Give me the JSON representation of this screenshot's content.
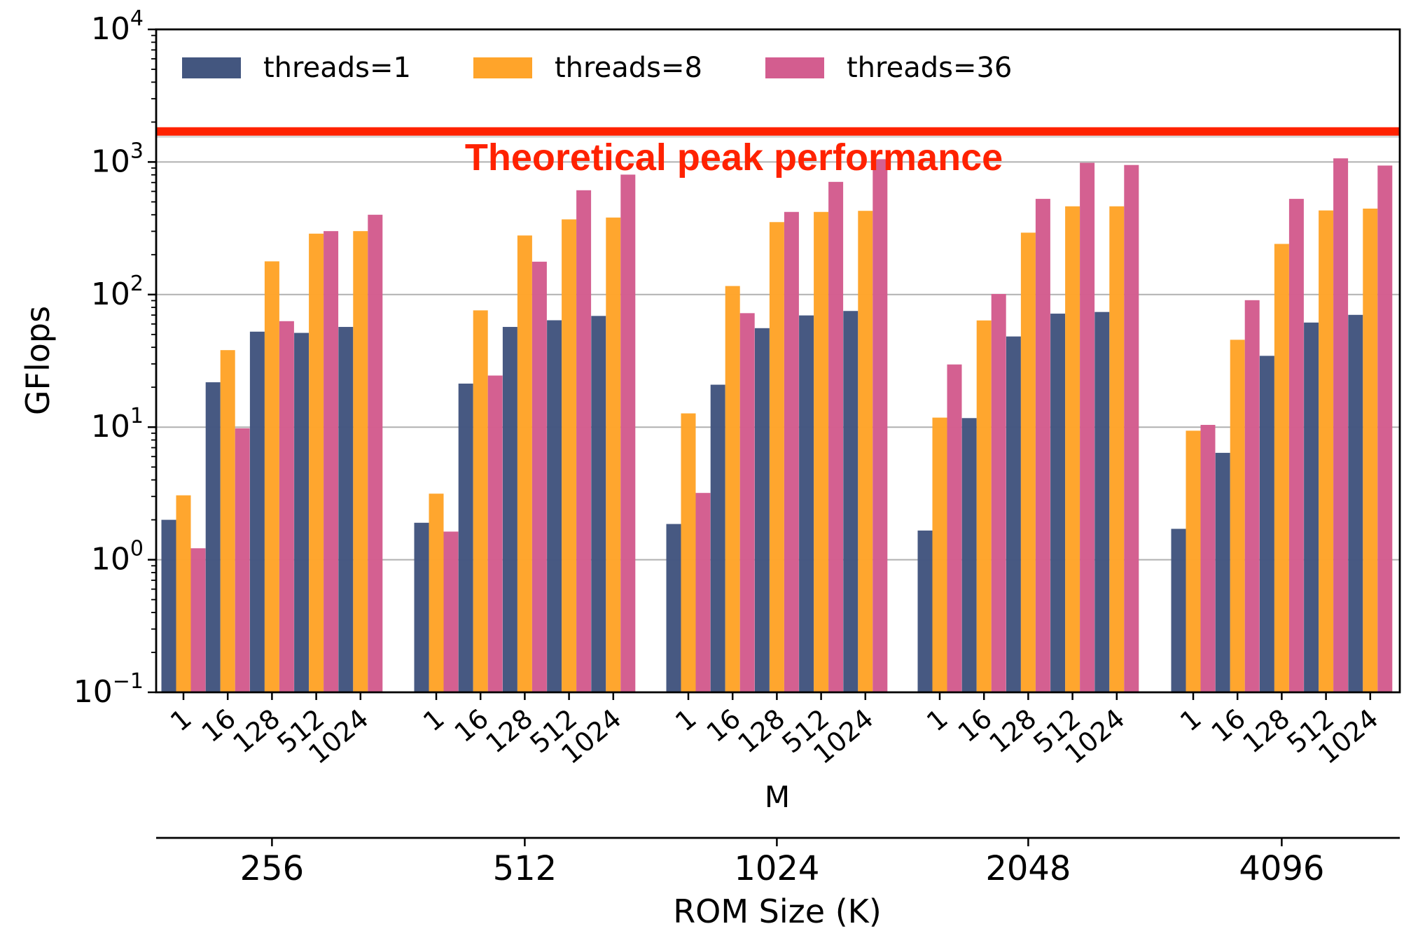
{
  "chart_data": {
    "type": "bar",
    "yscale": "log",
    "ylabel": "GFlops",
    "xlabel": "M",
    "secondary_xlabel": "ROM Size (K)",
    "ylim": [
      0.1,
      10000
    ],
    "yticks": [
      {
        "value": 0.1,
        "base": "10",
        "exp": "−1"
      },
      {
        "value": 1,
        "base": "10",
        "exp": "0"
      },
      {
        "value": 10,
        "base": "10",
        "exp": "1"
      },
      {
        "value": 100,
        "base": "10",
        "exp": "2"
      },
      {
        "value": 1000,
        "base": "10",
        "exp": "3"
      },
      {
        "value": 10000,
        "base": "10",
        "exp": "4"
      }
    ],
    "grid": "horizontal major",
    "legend_position": "top-left",
    "groups": [
      "256",
      "512",
      "1024",
      "2048",
      "4096"
    ],
    "categories": [
      "1",
      "16",
      "128",
      "512",
      "1024"
    ],
    "series": [
      {
        "name": "threads=1",
        "color": "#43567f",
        "values": [
          [
            2.0,
            21.8,
            52.5,
            51.4,
            57.0
          ],
          [
            1.9,
            21.3,
            57.0,
            64.0,
            69.0
          ],
          [
            1.86,
            20.9,
            55.8,
            69.6,
            75.2
          ],
          [
            1.66,
            11.7,
            48.3,
            71.8,
            73.9
          ],
          [
            1.71,
            6.4,
            34.5,
            61.5,
            70.3
          ]
        ]
      },
      {
        "name": "threads=8",
        "color": "#ffa42a",
        "values": [
          [
            3.06,
            38.1,
            178,
            288,
            301
          ],
          [
            3.15,
            76,
            279,
            369,
            381
          ],
          [
            12.7,
            116,
            352,
            420,
            428
          ],
          [
            11.8,
            63.8,
            293,
            463,
            463
          ],
          [
            9.4,
            45.6,
            241,
            431,
            445
          ]
        ]
      },
      {
        "name": "threads=36",
        "color": "#d35d8f",
        "values": [
          [
            1.22,
            9.8,
            63,
            301,
            400
          ],
          [
            1.63,
            24.5,
            177,
            612,
            803
          ],
          [
            3.19,
            72.4,
            420,
            708,
            1050
          ],
          [
            29.7,
            101,
            527,
            986,
            949
          ],
          [
            10.4,
            90.7,
            527,
            1065,
            940
          ]
        ]
      }
    ],
    "reference_line": {
      "label": "Theoretical peak performance",
      "value": 1700,
      "color": "#ff2200"
    }
  }
}
